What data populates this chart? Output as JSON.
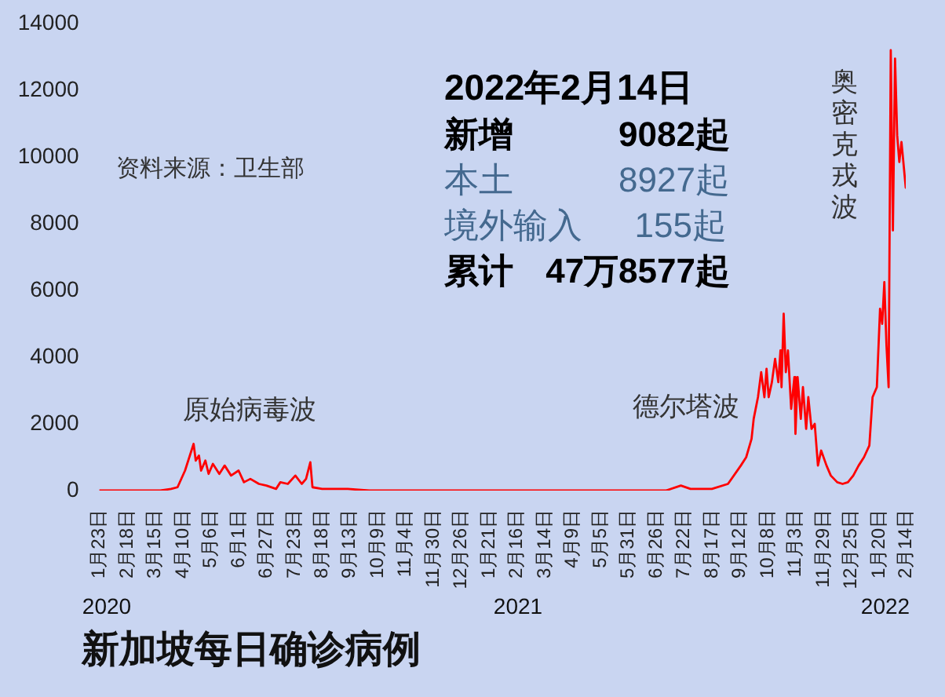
{
  "chart_data": {
    "type": "line",
    "title": "新加坡每日确诊病例",
    "x": [
      "2020-01-23",
      "2020-03-20",
      "2020-03-30",
      "2020-04-05",
      "2020-04-12",
      "2020-04-20",
      "2020-04-22",
      "2020-04-25",
      "2020-04-27",
      "2020-05-01",
      "2020-05-04",
      "2020-05-08",
      "2020-05-14",
      "2020-05-19",
      "2020-05-25",
      "2020-06-01",
      "2020-06-06",
      "2020-06-12",
      "2020-06-20",
      "2020-06-27",
      "2020-07-06",
      "2020-07-10",
      "2020-07-17",
      "2020-07-24",
      "2020-07-30",
      "2020-08-03",
      "2020-08-07",
      "2020-08-09",
      "2020-08-18",
      "2020-09-11",
      "2020-10-01",
      "2021-07-05",
      "2021-07-19",
      "2021-07-28",
      "2021-08-17",
      "2021-09-01",
      "2021-09-13",
      "2021-09-18",
      "2021-09-23",
      "2021-09-25",
      "2021-09-29",
      "2021-10-02",
      "2021-10-05",
      "2021-10-07",
      "2021-10-09",
      "2021-10-12",
      "2021-10-15",
      "2021-10-18",
      "2021-10-20",
      "2021-10-21",
      "2021-10-23",
      "2021-10-25",
      "2021-10-27",
      "2021-10-30",
      "2021-11-02",
      "2021-11-03",
      "2021-11-05",
      "2021-11-08",
      "2021-11-10",
      "2021-11-13",
      "2021-11-15",
      "2021-11-18",
      "2021-11-21",
      "2021-11-24",
      "2021-11-27",
      "2021-12-02",
      "2021-12-06",
      "2021-12-12",
      "2021-12-17",
      "2021-12-22",
      "2021-12-27",
      "2022-01-01",
      "2022-01-06",
      "2022-01-11",
      "2022-01-14",
      "2022-01-18",
      "2022-01-21",
      "2022-01-23",
      "2022-01-25",
      "2022-01-27",
      "2022-01-29",
      "2022-01-31",
      "2022-02-02",
      "2022-02-04",
      "2022-02-06",
      "2022-02-08",
      "2022-02-10",
      "2022-02-14"
    ],
    "series": [
      {
        "color": "#ff0000",
        "values": [
          0,
          0,
          50,
          100,
          600,
          1400,
          900,
          1050,
          600,
          900,
          500,
          800,
          500,
          750,
          450,
          600,
          250,
          350,
          200,
          150,
          50,
          250,
          200,
          450,
          200,
          350,
          850,
          100,
          50,
          50,
          0,
          0,
          150,
          50,
          50,
          200,
          750,
          1000,
          1550,
          2150,
          2800,
          3550,
          2800,
          3650,
          2800,
          3250,
          3950,
          3250,
          4200,
          3100,
          5300,
          3550,
          4200,
          2450,
          3400,
          1700,
          3400,
          2150,
          3100,
          1850,
          2800,
          1850,
          2000,
          750,
          1200,
          750,
          450,
          250,
          200,
          250,
          450,
          750,
          1000,
          1350,
          2800,
          3100,
          5450,
          5000,
          6250,
          4350,
          3100,
          13200,
          7800,
          12950,
          10650,
          9850,
          10450,
          9082
        ]
      }
    ],
    "xlim": [
      "2020-01-23",
      "2022-02-14"
    ],
    "xticks": [
      {
        "value": "2020-01-23",
        "label": "1月23日"
      },
      {
        "value": "2020-02-18",
        "label": "2月18日"
      },
      {
        "value": "2020-03-15",
        "label": "3月15日"
      },
      {
        "value": "2020-04-10",
        "label": "4月10日"
      },
      {
        "value": "2020-05-06",
        "label": "5月6日"
      },
      {
        "value": "2020-06-01",
        "label": "6月1日"
      },
      {
        "value": "2020-06-27",
        "label": "6月27日"
      },
      {
        "value": "2020-07-23",
        "label": "7月23日"
      },
      {
        "value": "2020-08-18",
        "label": "8月18日"
      },
      {
        "value": "2020-09-13",
        "label": "9月13日"
      },
      {
        "value": "2020-10-09",
        "label": "10月9日"
      },
      {
        "value": "2020-11-04",
        "label": "11月4日"
      },
      {
        "value": "2020-11-30",
        "label": "11月30日"
      },
      {
        "value": "2020-12-26",
        "label": "12月26日"
      },
      {
        "value": "2021-01-21",
        "label": "1月21日"
      },
      {
        "value": "2021-02-16",
        "label": "2月16日"
      },
      {
        "value": "2021-03-14",
        "label": "3月14日"
      },
      {
        "value": "2021-04-09",
        "label": "4月9日"
      },
      {
        "value": "2021-05-05",
        "label": "5月5日"
      },
      {
        "value": "2021-05-31",
        "label": "5月31日"
      },
      {
        "value": "2021-06-26",
        "label": "6月26日"
      },
      {
        "value": "2021-07-22",
        "label": "7月22日"
      },
      {
        "value": "2021-08-17",
        "label": "8月17日"
      },
      {
        "value": "2021-09-12",
        "label": "9月12日"
      },
      {
        "value": "2021-10-08",
        "label": "10月8日"
      },
      {
        "value": "2021-11-03",
        "label": "11月3日"
      },
      {
        "value": "2021-11-29",
        "label": "11月29日"
      },
      {
        "value": "2021-12-25",
        "label": "12月25日"
      },
      {
        "value": "2022-01-20",
        "label": "1月20日"
      },
      {
        "value": "2022-02-14",
        "label": "2月14日"
      }
    ],
    "ylim": [
      0,
      14000
    ],
    "yticks": [
      0,
      2000,
      4000,
      6000,
      8000,
      10000,
      12000,
      14000
    ],
    "annotations": [
      "资料来源：卫生部",
      "2022年2月14日",
      "新增",
      "9082起",
      "本土",
      "8927起",
      "境外输入",
      "155起",
      "累计",
      "47万8577起",
      "原始病毒波",
      "德尔塔波",
      "奥密克戎波",
      "2020",
      "2021",
      "2022"
    ]
  }
}
